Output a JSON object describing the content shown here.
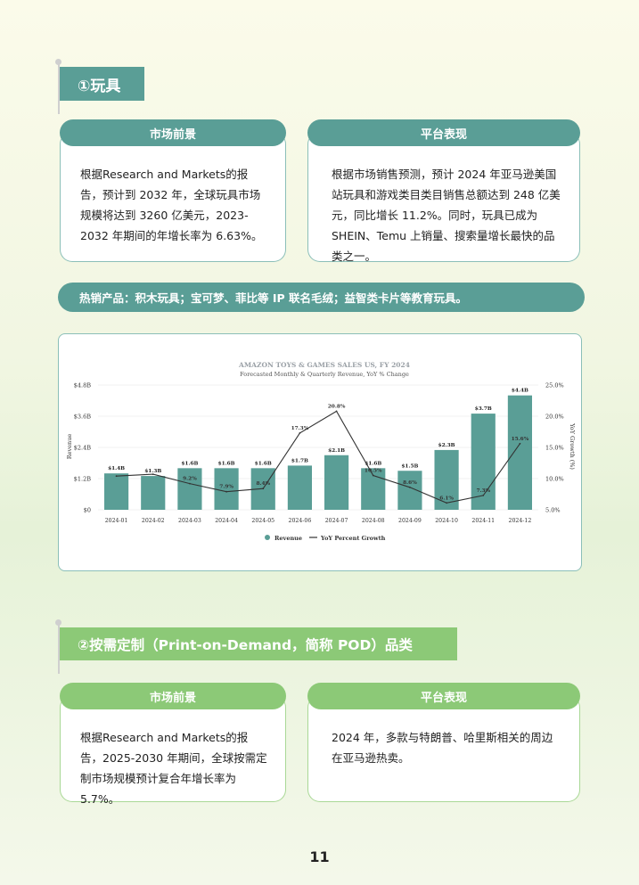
{
  "section1": {
    "title": "①玩具",
    "left_pill": "市场前景",
    "right_pill": "平台表现",
    "left_text": "根据Research and Markets的报告，预计到 2032 年，全球玩具市场规模将达到 3260 亿美元，2023-2032 年期间的年增长率为 6.63%。",
    "right_text": "根据市场销售预测，预计 2024 年亚马逊美国站玩具和游戏类目类目销售总额达到 248 亿美元，同比增长 11.2%。同时，玩具已成为 SHEIN、Temu 上销量、搜索量增长最快的品类之一。",
    "hot_products": "热销产品：积木玩具；宝可梦、菲比等 IP 联名毛绒；益智类卡片等教育玩具。"
  },
  "section2": {
    "title": "②按需定制（Print-on-Demand，简称 POD）品类",
    "left_pill": "市场前景",
    "right_pill": "平台表现",
    "left_text": "根据Research and Markets的报告，2025-2030 年期间，全球按需定制市场规模预计复合年增长率为 5.7%。",
    "right_text": "2024 年，多款与特朗普、哈里斯相关的周边在亚马逊热卖。"
  },
  "page_number": "11",
  "colors": {
    "teal": "#5a9e96",
    "green": "#8cc977",
    "line": "#333333"
  },
  "chart_data": {
    "type": "bar",
    "title": "AMAZON TOYS & GAMES SALES US, FY 2024",
    "subtitle": "Forecasted Monthly & Quarterly Revenue, YoY % Change",
    "categories": [
      "2024-01",
      "2024-02",
      "2024-03",
      "2024-04",
      "2024-05",
      "2024-06",
      "2024-07",
      "2024-08",
      "2024-09",
      "2024-10",
      "2024-11",
      "2024-12"
    ],
    "series": [
      {
        "name": "Revenue",
        "type": "bar",
        "values": [
          1.4,
          1.3,
          1.6,
          1.6,
          1.6,
          1.7,
          2.1,
          1.6,
          1.5,
          2.3,
          3.7,
          4.4
        ],
        "labels": [
          "$1.4B",
          "$1.3B",
          "$1.6B",
          "$1.6B",
          "$1.6B",
          "$1.7B",
          "$2.1B",
          "$1.6B",
          "$1.5B",
          "$2.3B",
          "$3.7B",
          "$4.4B"
        ]
      },
      {
        "name": "YoY Percent Growth",
        "type": "line",
        "values": [
          10.4,
          10.7,
          9.2,
          7.9,
          8.4,
          17.3,
          20.8,
          10.5,
          8.6,
          6.1,
          7.3,
          15.6
        ],
        "labels": [
          "",
          "",
          "9.2%",
          "7.9%",
          "8.4%",
          "17.3%",
          "20.8%",
          "10.5%",
          "8.6%",
          "6.1%",
          "7.3%",
          "15.6%"
        ]
      }
    ],
    "ylabel": "Revenue",
    "y2label": "YoY Growth (%)",
    "ylim": [
      0,
      4.8
    ],
    "y2lim": [
      5,
      25
    ],
    "yticks": [
      "$0",
      "$1.2B",
      "$2.4B",
      "$3.6B",
      "$4.8B"
    ],
    "y2ticks": [
      "5.0%",
      "10.0%",
      "15.0%",
      "20.0%",
      "25.0%"
    ],
    "legend_position": "bottom",
    "grid": true
  }
}
